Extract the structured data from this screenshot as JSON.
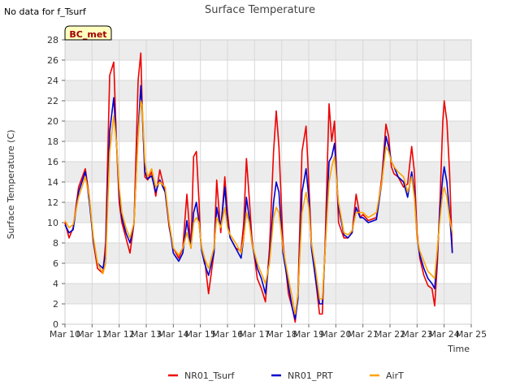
{
  "notice": "No data for f_Tsurf",
  "badge": "BC_met",
  "colors": {
    "band": "#ececec",
    "grid": "#d8d8d8",
    "badge_bg": "#ffffc0",
    "badge_text": "#a00000"
  },
  "chart_data": {
    "type": "line",
    "title": "Surface Temperature",
    "xlabel": "Time",
    "ylabel": "Surface Temperature (C)",
    "ylim": [
      0,
      28
    ],
    "yticks": [
      0,
      2,
      4,
      6,
      8,
      10,
      12,
      14,
      16,
      18,
      20,
      22,
      24,
      26,
      28
    ],
    "xlim": [
      10,
      25
    ],
    "xticks": [
      {
        "value": 10,
        "label": "Mar 10"
      },
      {
        "value": 11,
        "label": "Mar 11"
      },
      {
        "value": 12,
        "label": "Mar 12"
      },
      {
        "value": 13,
        "label": "Mar 13"
      },
      {
        "value": 14,
        "label": "Mar 14"
      },
      {
        "value": 15,
        "label": "Mar 15"
      },
      {
        "value": 16,
        "label": "Mar 16"
      },
      {
        "value": 17,
        "label": "Mar 17"
      },
      {
        "value": 18,
        "label": "Mar 18"
      },
      {
        "value": 19,
        "label": "Mar 19"
      },
      {
        "value": 20,
        "label": "Mar 20"
      },
      {
        "value": 21,
        "label": "Mar 21"
      },
      {
        "value": 22,
        "label": "Mar 22"
      },
      {
        "value": 23,
        "label": "Mar 23"
      },
      {
        "value": 24,
        "label": "Mar 24"
      },
      {
        "value": 25,
        "label": "Mar 25"
      }
    ],
    "grid": true,
    "legend_position": "bottom",
    "series": [
      {
        "name": "NR01_Tsurf",
        "color": "#ee0000",
        "x": [
          10.0,
          10.15,
          10.3,
          10.5,
          10.75,
          10.9,
          11.05,
          11.2,
          11.4,
          11.5,
          11.65,
          11.8,
          11.9,
          12.0,
          12.1,
          12.25,
          12.4,
          12.55,
          12.7,
          12.8,
          12.85,
          12.95,
          13.05,
          13.2,
          13.35,
          13.5,
          13.7,
          13.85,
          14.0,
          14.2,
          14.35,
          14.5,
          14.65,
          14.75,
          14.85,
          14.95,
          15.0,
          15.05,
          15.15,
          15.3,
          15.5,
          15.6,
          15.75,
          15.9,
          16.0,
          16.1,
          16.3,
          16.5,
          16.6,
          16.7,
          16.8,
          16.9,
          17.1,
          17.25,
          17.4,
          17.55,
          17.7,
          17.8,
          17.9,
          18.05,
          18.25,
          18.4,
          18.5,
          18.6,
          18.75,
          18.9,
          19.0,
          19.1,
          19.25,
          19.4,
          19.5,
          19.6,
          19.75,
          19.85,
          19.95,
          20.1,
          20.3,
          20.45,
          20.6,
          20.75,
          20.9,
          21.0,
          21.2,
          21.5,
          21.7,
          21.85,
          21.95,
          22.05,
          22.15,
          22.3,
          22.5,
          22.65,
          22.8,
          22.9,
          23.0,
          23.1,
          23.25,
          23.4,
          23.55,
          23.65,
          23.75,
          23.85,
          23.95,
          24.0,
          24.1,
          24.2,
          24.3
        ],
        "values": [
          10.0,
          8.5,
          9.5,
          13.5,
          15.3,
          12.5,
          8.0,
          5.5,
          5.0,
          8.0,
          24.5,
          25.8,
          18.0,
          12.0,
          10.0,
          8.5,
          7.0,
          10.0,
          24.0,
          26.7,
          21.5,
          14.5,
          14.2,
          15.0,
          12.6,
          15.2,
          13.0,
          9.5,
          7.5,
          6.5,
          7.5,
          12.8,
          7.5,
          16.5,
          17.0,
          12.0,
          8.5,
          7.5,
          6.5,
          3.0,
          7.0,
          14.2,
          9.0,
          14.5,
          11.0,
          8.5,
          7.5,
          7.2,
          10.0,
          16.3,
          12.5,
          8.5,
          4.5,
          3.5,
          2.2,
          7.5,
          17.0,
          21.0,
          17.5,
          8.0,
          3.0,
          1.5,
          0.2,
          3.0,
          17.0,
          19.5,
          14.0,
          8.0,
          4.5,
          1.0,
          1.0,
          7.5,
          21.7,
          18.0,
          20.0,
          10.0,
          8.5,
          8.5,
          9.0,
          12.8,
          10.5,
          10.8,
          10.2,
          10.5,
          14.5,
          19.7,
          18.5,
          15.5,
          14.8,
          14.5,
          13.5,
          13.8,
          17.5,
          15.0,
          9.0,
          6.5,
          4.8,
          3.8,
          3.5,
          1.8,
          6.0,
          12.5,
          20.0,
          22.0,
          20.0,
          15.0,
          7.0
        ]
      },
      {
        "name": "NR01_PRT",
        "color": "#0000cc",
        "x": [
          10.0,
          10.15,
          10.3,
          10.5,
          10.75,
          10.9,
          11.05,
          11.2,
          11.4,
          11.5,
          11.65,
          11.8,
          11.9,
          12.0,
          12.1,
          12.25,
          12.4,
          12.55,
          12.7,
          12.8,
          12.85,
          12.95,
          13.05,
          13.2,
          13.35,
          13.5,
          13.7,
          13.85,
          14.0,
          14.2,
          14.35,
          14.5,
          14.65,
          14.75,
          14.85,
          14.95,
          15.0,
          15.05,
          15.15,
          15.3,
          15.5,
          15.6,
          15.75,
          15.9,
          16.0,
          16.1,
          16.3,
          16.5,
          16.6,
          16.7,
          16.8,
          16.9,
          17.1,
          17.25,
          17.4,
          17.55,
          17.7,
          17.8,
          17.9,
          18.05,
          18.25,
          18.4,
          18.5,
          18.6,
          18.75,
          18.9,
          19.0,
          19.1,
          19.25,
          19.4,
          19.5,
          19.6,
          19.75,
          19.85,
          19.95,
          20.1,
          20.3,
          20.45,
          20.6,
          20.75,
          20.9,
          21.0,
          21.2,
          21.5,
          21.7,
          21.85,
          21.95,
          22.05,
          22.15,
          22.3,
          22.5,
          22.65,
          22.8,
          22.9,
          23.0,
          23.1,
          23.25,
          23.4,
          23.55,
          23.65,
          23.75,
          23.85,
          23.95,
          24.0,
          24.1,
          24.2,
          24.3
        ],
        "values": [
          9.8,
          9.0,
          9.3,
          13.0,
          15.0,
          12.0,
          8.2,
          6.0,
          5.5,
          7.0,
          19.0,
          22.3,
          18.0,
          13.0,
          10.5,
          9.0,
          8.0,
          10.0,
          19.0,
          23.5,
          21.0,
          15.0,
          14.3,
          14.6,
          13.0,
          14.2,
          13.0,
          9.8,
          7.0,
          6.2,
          7.0,
          10.2,
          7.5,
          11.0,
          12.0,
          10.0,
          8.5,
          7.2,
          6.0,
          4.8,
          7.0,
          11.5,
          9.5,
          13.5,
          10.0,
          8.5,
          7.5,
          6.5,
          8.5,
          12.5,
          10.5,
          8.0,
          5.5,
          4.5,
          3.0,
          6.5,
          12.0,
          14.0,
          13.0,
          7.0,
          3.8,
          1.5,
          0.5,
          2.5,
          13.0,
          15.3,
          12.5,
          7.5,
          4.5,
          2.0,
          2.0,
          7.0,
          16.0,
          16.5,
          17.8,
          11.5,
          8.8,
          8.5,
          9.0,
          11.5,
          10.5,
          10.5,
          10.0,
          10.3,
          14.0,
          18.5,
          17.5,
          16.0,
          15.5,
          14.5,
          14.0,
          12.5,
          15.0,
          13.0,
          8.5,
          6.8,
          5.5,
          4.5,
          4.0,
          3.5,
          7.0,
          11.5,
          14.5,
          15.5,
          14.0,
          11.0,
          7.0
        ]
      },
      {
        "name": "AirT",
        "color": "#ffa500",
        "x": [
          10.0,
          10.15,
          10.3,
          10.5,
          10.75,
          10.9,
          11.05,
          11.2,
          11.4,
          11.5,
          11.65,
          11.8,
          11.9,
          12.0,
          12.1,
          12.25,
          12.4,
          12.55,
          12.7,
          12.8,
          12.85,
          12.95,
          13.05,
          13.2,
          13.35,
          13.5,
          13.7,
          13.85,
          14.0,
          14.2,
          14.35,
          14.5,
          14.65,
          14.75,
          14.85,
          14.95,
          15.0,
          15.05,
          15.15,
          15.3,
          15.5,
          15.6,
          15.75,
          15.9,
          16.0,
          16.1,
          16.3,
          16.5,
          16.6,
          16.7,
          16.8,
          16.9,
          17.1,
          17.25,
          17.4,
          17.55,
          17.7,
          17.8,
          17.9,
          18.05,
          18.25,
          18.4,
          18.5,
          18.6,
          18.75,
          18.9,
          19.0,
          19.1,
          19.25,
          19.4,
          19.5,
          19.6,
          19.75,
          19.85,
          19.95,
          20.1,
          20.3,
          20.45,
          20.6,
          20.75,
          20.9,
          21.0,
          21.2,
          21.5,
          21.7,
          21.85,
          21.95,
          22.05,
          22.15,
          22.3,
          22.5,
          22.65,
          22.8,
          22.9,
          23.0,
          23.1,
          23.25,
          23.4,
          23.55,
          23.65,
          23.75,
          23.85,
          23.95,
          24.0,
          24.1,
          24.2,
          24.3
        ],
        "values": [
          10.2,
          9.5,
          9.8,
          12.5,
          14.5,
          12.5,
          8.5,
          6.0,
          5.0,
          6.0,
          17.0,
          20.5,
          18.0,
          13.5,
          11.0,
          9.5,
          8.5,
          10.0,
          18.5,
          22.0,
          21.5,
          16.0,
          14.5,
          15.3,
          13.5,
          14.0,
          13.5,
          10.0,
          7.5,
          6.8,
          7.5,
          9.0,
          7.5,
          10.0,
          10.5,
          10.0,
          8.5,
          7.5,
          6.5,
          5.5,
          7.5,
          10.5,
          9.5,
          11.5,
          9.5,
          8.8,
          8.0,
          7.0,
          8.5,
          11.0,
          10.0,
          8.0,
          6.0,
          5.0,
          4.0,
          6.0,
          10.5,
          11.5,
          11.0,
          7.5,
          4.5,
          2.5,
          1.0,
          3.0,
          11.0,
          13.0,
          11.5,
          8.0,
          5.5,
          2.5,
          2.5,
          7.0,
          14.0,
          15.5,
          16.5,
          12.0,
          9.0,
          8.8,
          9.2,
          11.0,
          11.0,
          11.0,
          10.5,
          11.0,
          14.0,
          17.5,
          17.0,
          16.0,
          15.5,
          15.0,
          14.5,
          13.0,
          14.5,
          12.5,
          8.5,
          7.2,
          6.2,
          5.2,
          4.8,
          4.5,
          7.5,
          10.5,
          13.0,
          13.5,
          12.5,
          10.5,
          9.0
        ]
      }
    ]
  }
}
